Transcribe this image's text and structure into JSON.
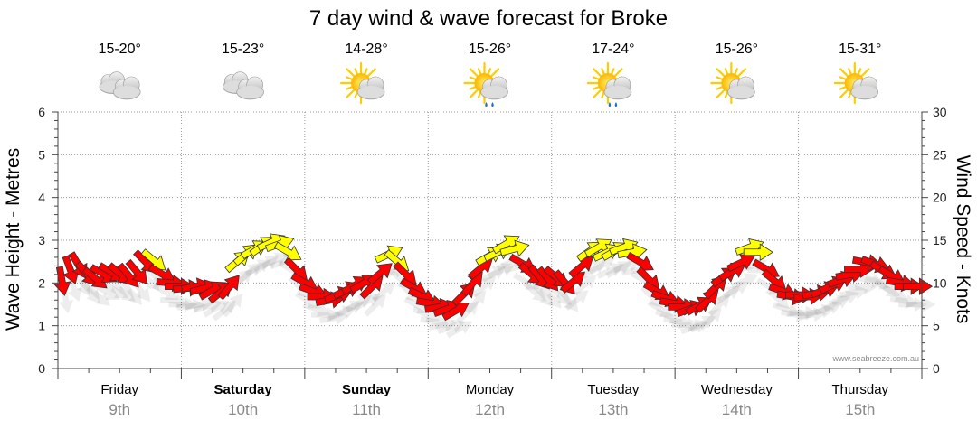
{
  "title": "7 day wind & wave forecast for Broke",
  "credit": "www.seabreeze.com.au",
  "colors": {
    "wind_low": "#ffff00",
    "wind_high": "#ff0000",
    "arrow_stroke": "#333333",
    "grid": "#999999",
    "sun": "#ffcc00",
    "cloud": "#d0d0d0"
  },
  "days": [
    {
      "name": "Friday",
      "date": "9th",
      "temp": "15-20°",
      "icon": "cloudy-icon",
      "bold": false
    },
    {
      "name": "Saturday",
      "date": "10th",
      "temp": "15-23°",
      "icon": "cloudy-icon",
      "bold": true
    },
    {
      "name": "Sunday",
      "date": "11th",
      "temp": "14-28°",
      "icon": "partly-cloudy-icon",
      "bold": true
    },
    {
      "name": "Monday",
      "date": "12th",
      "temp": "15-26°",
      "icon": "partly-cloudy-showers-icon",
      "bold": false
    },
    {
      "name": "Tuesday",
      "date": "13th",
      "temp": "17-24°",
      "icon": "partly-cloudy-showers-icon",
      "bold": false
    },
    {
      "name": "Wednesday",
      "date": "14th",
      "temp": "15-26°",
      "icon": "partly-cloudy-icon",
      "bold": false
    },
    {
      "name": "Thursday",
      "date": "15th",
      "temp": "15-31°",
      "icon": "partly-cloudy-icon",
      "bold": false
    }
  ],
  "chart_data": {
    "type": "line",
    "title": "7 day wind & wave forecast for Broke",
    "ylabel": "Wave Height - Metres",
    "y2label": "Wind Speed - Knots",
    "ylim": [
      0,
      6
    ],
    "y2lim": [
      0,
      30
    ],
    "yticks": [
      "0",
      "1",
      "2",
      "3",
      "4",
      "5",
      "6"
    ],
    "y2ticks": [
      "0",
      "5",
      "10",
      "15",
      "20",
      "25",
      "30"
    ],
    "categories": [
      "Friday 9th",
      "Saturday 10th",
      "Sunday 11th",
      "Monday 12th",
      "Tuesday 13th",
      "Wednesday 14th",
      "Thursday 15th"
    ],
    "grid": true,
    "series": [
      {
        "wind_knots": [
          10.2,
          11.5,
          12.0,
          11.0,
          10.5,
          11.0,
          11.2,
          11.0,
          10.8,
          11.2,
          12.4,
          12.6,
          11.0,
          10.0,
          9.6,
          9.4,
          9.6,
          9.4,
          9.2,
          9.0,
          9.6,
          12.6,
          13.4,
          14.0,
          14.4,
          14.8,
          14.6,
          13.6,
          11.5,
          10.0,
          9.0,
          8.4,
          8.0,
          8.6,
          9.2,
          9.8,
          10.0,
          9.6,
          11.2,
          13.4,
          12.5,
          11.0,
          9.4,
          8.4,
          7.6,
          7.2,
          7.0,
          6.8,
          8.8,
          10.0,
          11.8,
          13.2,
          13.6,
          14.6,
          14.0,
          12.2,
          11.0,
          10.6,
          10.4,
          10.6,
          10.0,
          10.2,
          12.0,
          13.8,
          14.2,
          13.6,
          13.8,
          14.2,
          13.6,
          12.4,
          10.4,
          9.0,
          8.2,
          7.6,
          7.2,
          7.0,
          7.4,
          8.0,
          9.6,
          10.8,
          11.4,
          12.4,
          14.2,
          13.6,
          11.6,
          10.2,
          9.0,
          8.4,
          8.6,
          8.4,
          8.8,
          9.2,
          9.8,
          10.4,
          11.0,
          11.6,
          12.4,
          12.2,
          11.4,
          10.8,
          10.0,
          9.6,
          9.6
        ],
        "wind_dir_deg": [
          350,
          340,
          330,
          320,
          310,
          300,
          300,
          310,
          320,
          320,
          315,
          310,
          300,
          275,
          270,
          265,
          260,
          255,
          240,
          230,
          220,
          230,
          230,
          240,
          235,
          245,
          250,
          300,
          315,
          300,
          290,
          270,
          260,
          250,
          245,
          240,
          240,
          225,
          230,
          245,
          310,
          315,
          300,
          295,
          280,
          260,
          250,
          240,
          225,
          220,
          230,
          240,
          245,
          240,
          255,
          300,
          310,
          320,
          320,
          310,
          320,
          230,
          230,
          235,
          240,
          245,
          240,
          250,
          260,
          300,
          315,
          300,
          290,
          280,
          270,
          250,
          240,
          225,
          225,
          235,
          240,
          245,
          250,
          270,
          300,
          310,
          290,
          280,
          270,
          265,
          260,
          250,
          245,
          250,
          260,
          270,
          280,
          290,
          300,
          300,
          280,
          270,
          270
        ]
      }
    ]
  }
}
